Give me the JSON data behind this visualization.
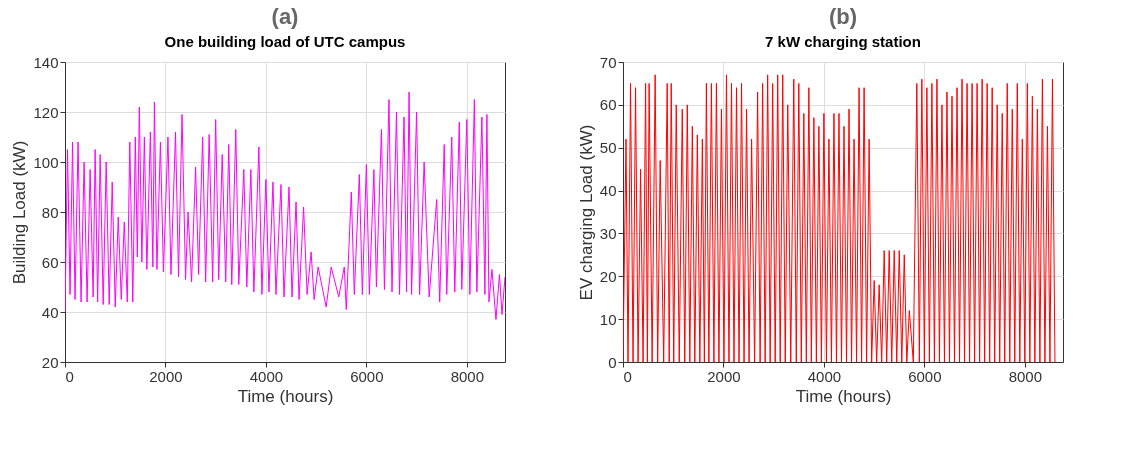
{
  "chart_data": [
    {
      "type": "line",
      "title": "(a)",
      "subtitle": "One building load of UTC campus",
      "xlabel": "Time (hours)",
      "ylabel": "Building Load (kW)",
      "x": [
        0,
        50,
        100,
        150,
        200,
        260,
        320,
        380,
        440,
        500,
        560,
        600,
        650,
        700,
        760,
        820,
        880,
        940,
        1000,
        1060,
        1120,
        1180,
        1240,
        1290,
        1350,
        1400,
        1440,
        1480,
        1530,
        1580,
        1630,
        1700,
        1750,
        1780,
        1830,
        1900,
        1960,
        2050,
        2110,
        2200,
        2260,
        2330,
        2400,
        2450,
        2520,
        2600,
        2660,
        2740,
        2800,
        2870,
        2940,
        3000,
        3060,
        3130,
        3200,
        3260,
        3320,
        3400,
        3460,
        3560,
        3620,
        3700,
        3760,
        3860,
        3920,
        4000,
        4060,
        4140,
        4200,
        4300,
        4360,
        4460,
        4520,
        4600,
        4660,
        4750,
        4820,
        4900,
        4960,
        5040,
        5200,
        5300,
        5450,
        5560,
        5600,
        5700,
        5760,
        5860,
        5920,
        6000,
        6060,
        6150,
        6200,
        6300,
        6360,
        6450,
        6510,
        6600,
        6660,
        6750,
        6800,
        6850,
        6900,
        7000,
        7060,
        7150,
        7250,
        7400,
        7460,
        7550,
        7600,
        7700,
        7760,
        7850,
        7900,
        8000,
        8060,
        8150,
        8200,
        8300,
        8360,
        8400,
        8440,
        8500,
        8580,
        8650,
        8700,
        8760
      ],
      "series": [
        {
          "color": "#ff00ff",
          "values": [
            40,
            105,
            47,
            108,
            45,
            108,
            44,
            100,
            44,
            97,
            46,
            105,
            44,
            103,
            43,
            100,
            43,
            92,
            42,
            78,
            45,
            76,
            44,
            108,
            44,
            110,
            62,
            122,
            60,
            110,
            57,
            112,
            58,
            124,
            57,
            108,
            56,
            110,
            55,
            112,
            54,
            119,
            53,
            80,
            52,
            98,
            55,
            110,
            52,
            111,
            52,
            117,
            53,
            103,
            52,
            107,
            51,
            113,
            51,
            97,
            50,
            97,
            48,
            106,
            47,
            93,
            48,
            92,
            47,
            91,
            46,
            90,
            46,
            84,
            45,
            82,
            47,
            64,
            45,
            58,
            42,
            58,
            46,
            58,
            41,
            88,
            47,
            95,
            47,
            99,
            47,
            97,
            50,
            113,
            49,
            125,
            48,
            120,
            47,
            118,
            48,
            128,
            47,
            120,
            47,
            100,
            46,
            85,
            44,
            107,
            47,
            110,
            48,
            116,
            49,
            117,
            47,
            125,
            48,
            118,
            47,
            119,
            44,
            57,
            37,
            55,
            39,
            54
          ]
        }
      ],
      "xlim": [
        0,
        8760
      ],
      "xticks": [
        0,
        2000,
        4000,
        6000,
        8000
      ],
      "ylim": [
        20,
        140
      ],
      "yticks": [
        20,
        40,
        60,
        80,
        100,
        120,
        140
      ],
      "grid": true,
      "line_style": "solid"
    },
    {
      "type": "line",
      "title": "(b)",
      "subtitle": "7 kW charging station",
      "xlabel": "Time (hours)",
      "ylabel": "EV charging Load (kW)",
      "x": [
        0,
        60,
        100,
        150,
        200,
        250,
        300,
        350,
        400,
        450,
        485,
        520,
        580,
        640,
        690,
        740,
        810,
        880,
        920,
        960,
        1010,
        1060,
        1120,
        1180,
        1230,
        1280,
        1330,
        1380,
        1430,
        1480,
        1530,
        1580,
        1620,
        1660,
        1710,
        1760,
        1810,
        1860,
        1910,
        1960,
        2010,
        2060,
        2110,
        2160,
        2210,
        2260,
        2310,
        2360,
        2410,
        2460,
        2510,
        2560,
        2620,
        2680,
        2730,
        2780,
        2830,
        2880,
        2930,
        2980,
        3030,
        3080,
        3130,
        3180,
        3230,
        3280,
        3340,
        3400,
        3450,
        3500,
        3550,
        3600,
        3650,
        3700,
        3750,
        3800,
        3850,
        3900,
        3950,
        4000,
        4050,
        4100,
        4150,
        4200,
        4250,
        4300,
        4350,
        4400,
        4450,
        4500,
        4550,
        4600,
        4650,
        4700,
        4750,
        4800,
        4850,
        4900,
        4950,
        5000,
        5050,
        5100,
        5150,
        5200,
        5250,
        5300,
        5350,
        5400,
        5450,
        5500,
        5550,
        5600,
        5650,
        5700,
        5780,
        5850,
        5900,
        5950,
        6000,
        6050,
        6100,
        6150,
        6200,
        6250,
        6300,
        6350,
        6400,
        6450,
        6500,
        6550,
        6600,
        6650,
        6700,
        6750,
        6800,
        6850,
        6900,
        6950,
        7000,
        7050,
        7100,
        7150,
        7200,
        7250,
        7300,
        7350,
        7400,
        7450,
        7500,
        7550,
        7600,
        7650,
        7700,
        7750,
        7800,
        7850,
        7900,
        7950,
        8000,
        8050,
        8100,
        8150,
        8200,
        8250,
        8300,
        8350,
        8400,
        8450,
        8500,
        8550,
        8600
      ],
      "series": [
        {
          "color": "#ff0000",
          "values": [
            0,
            52,
            0,
            65,
            0,
            64,
            0,
            45,
            0,
            65,
            0,
            65,
            0,
            67,
            0,
            47,
            0,
            65,
            0,
            65,
            0,
            60,
            0,
            59,
            0,
            60,
            0,
            55,
            0,
            53,
            0,
            52,
            0,
            65,
            0,
            65,
            0,
            65,
            0,
            59,
            0,
            67,
            0,
            65,
            0,
            64,
            0,
            65,
            0,
            59,
            0,
            52,
            0,
            63,
            0,
            65,
            0,
            67,
            0,
            65,
            0,
            67,
            0,
            67,
            0,
            60,
            0,
            66,
            0,
            65,
            0,
            58,
            0,
            64,
            0,
            57,
            0,
            55,
            0,
            58,
            0,
            52,
            0,
            58,
            0,
            58,
            0,
            55,
            0,
            59,
            0,
            52,
            0,
            64,
            0,
            64,
            0,
            52,
            0,
            19,
            0,
            18,
            0,
            26,
            0,
            26,
            0,
            26,
            0,
            26,
            0,
            25,
            0,
            12,
            0,
            65,
            0,
            66,
            0,
            64,
            0,
            65,
            0,
            66,
            0,
            60,
            0,
            63,
            0,
            62,
            0,
            64,
            0,
            66,
            0,
            65,
            0,
            65,
            0,
            65,
            0,
            66,
            0,
            65,
            0,
            64,
            0,
            60,
            0,
            58,
            0,
            65,
            0,
            59,
            0,
            65,
            0,
            52,
            0,
            65,
            0,
            62,
            0,
            59,
            0,
            66,
            0,
            55,
            0,
            66,
            0
          ]
        }
      ],
      "xlim": [
        0,
        8760
      ],
      "xticks": [
        0,
        2000,
        4000,
        6000,
        8000
      ],
      "ylim": [
        0,
        70
      ],
      "yticks": [
        0,
        10,
        20,
        30,
        40,
        50,
        60,
        70
      ],
      "grid": true,
      "line_style": "solid"
    }
  ]
}
